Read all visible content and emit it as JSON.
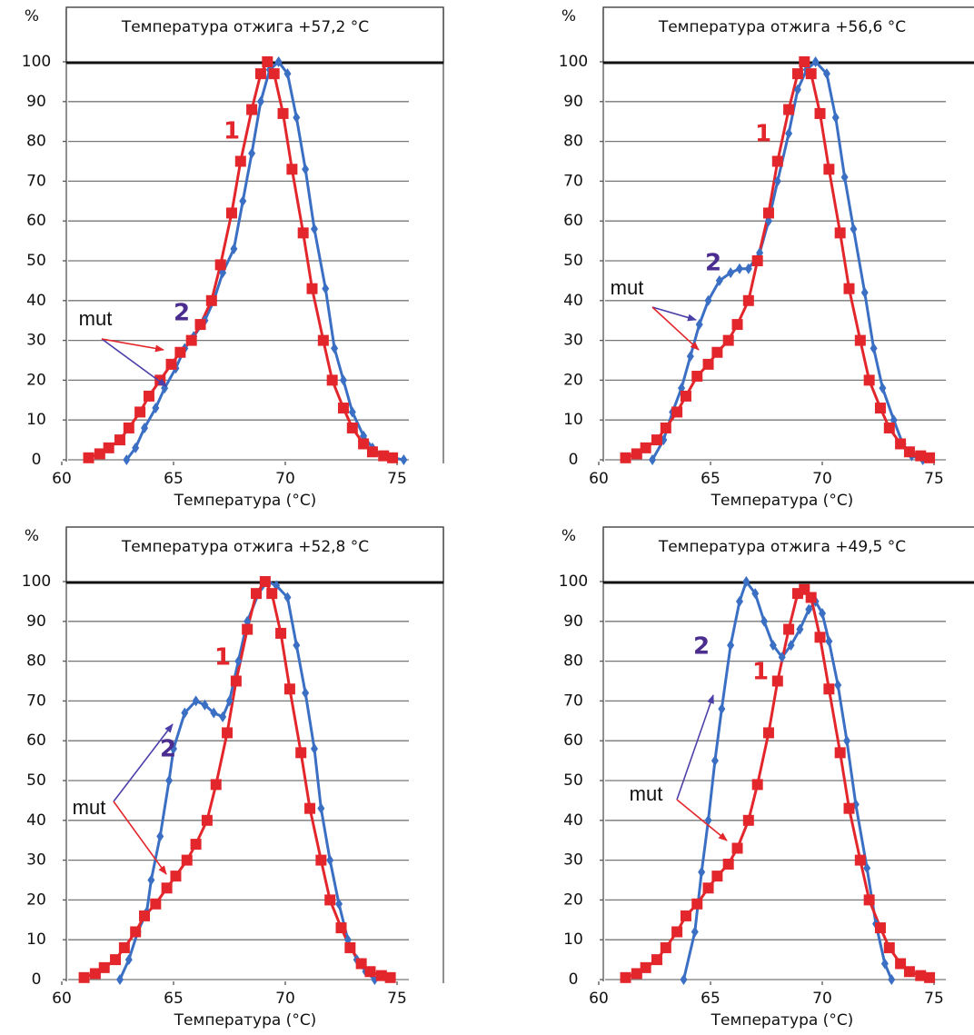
{
  "chart_data": [
    {
      "type": "line",
      "title": "Температура отжига +57,2 °C",
      "xlabel": "Температура (°C)",
      "ylabel": "%",
      "xlim": [
        60,
        75
      ],
      "ylim": [
        0,
        100
      ],
      "xticks": [
        60,
        65,
        70,
        75
      ],
      "yticks": [
        0,
        10,
        20,
        30,
        40,
        50,
        60,
        70,
        80,
        90,
        100
      ],
      "grid": true,
      "annotations": [
        "mut"
      ],
      "series": [
        {
          "name": "1",
          "color": "#e3262b",
          "marker": "square",
          "x": [
            61.2,
            61.7,
            62.1,
            62.6,
            63.0,
            63.5,
            63.9,
            64.4,
            64.9,
            65.3,
            65.8,
            66.2,
            66.7,
            67.1,
            67.6,
            68.0,
            68.5,
            68.9,
            69.2,
            69.5,
            69.9,
            70.3,
            70.8,
            71.2,
            71.7,
            72.1,
            72.6,
            73.0,
            73.5,
            73.9,
            74.4,
            74.8
          ],
          "values": [
            0.5,
            1.5,
            3,
            5,
            8,
            12,
            16,
            20,
            24,
            27,
            30,
            34,
            40,
            49,
            62,
            75,
            88,
            97,
            100,
            97,
            87,
            73,
            57,
            43,
            30,
            20,
            13,
            8,
            4,
            2,
            1,
            0.5
          ]
        },
        {
          "name": "2",
          "color": "#3a6fc4",
          "marker": "diamond",
          "x": [
            62.9,
            63.3,
            63.7,
            64.2,
            64.6,
            65.1,
            65.5,
            65.9,
            66.4,
            66.8,
            67.2,
            67.7,
            68.1,
            68.5,
            68.9,
            69.3,
            69.7,
            70.1,
            70.5,
            70.9,
            71.3,
            71.8,
            72.2,
            72.6,
            73.0,
            73.5,
            73.9,
            74.3,
            74.8,
            75.3
          ],
          "values": [
            0,
            3,
            8,
            13,
            18,
            23,
            28,
            31,
            35,
            40,
            47,
            53,
            65,
            77,
            90,
            98,
            100,
            97,
            86,
            73,
            58,
            43,
            28,
            20,
            12,
            6,
            3,
            1,
            0.5,
            0
          ]
        }
      ]
    },
    {
      "type": "line",
      "title": "Температура отжига +56,6 °C",
      "xlabel": "Температура (°C)",
      "ylabel": "%",
      "xlim": [
        60,
        75
      ],
      "ylim": [
        0,
        100
      ],
      "xticks": [
        60,
        65,
        70,
        75
      ],
      "yticks": [
        0,
        10,
        20,
        30,
        40,
        50,
        60,
        70,
        80,
        90,
        100
      ],
      "grid": true,
      "annotations": [
        "mut"
      ],
      "series": [
        {
          "name": "1",
          "color": "#e3262b",
          "marker": "square",
          "x": [
            61.2,
            61.7,
            62.1,
            62.6,
            63.0,
            63.5,
            63.9,
            64.4,
            64.9,
            65.3,
            65.8,
            66.2,
            66.7,
            67.1,
            67.6,
            68.0,
            68.5,
            68.9,
            69.2,
            69.5,
            69.9,
            70.3,
            70.8,
            71.2,
            71.7,
            72.1,
            72.6,
            73.0,
            73.5,
            73.9,
            74.4,
            74.8
          ],
          "values": [
            0.5,
            1.5,
            3,
            5,
            8,
            12,
            16,
            21,
            24,
            27,
            30,
            34,
            40,
            50,
            62,
            75,
            88,
            97,
            100,
            97,
            87,
            73,
            57,
            43,
            30,
            20,
            13,
            8,
            4,
            2,
            1,
            0.5
          ]
        },
        {
          "name": "2",
          "color": "#3a6fc4",
          "marker": "diamond",
          "x": [
            62.4,
            62.9,
            63.3,
            63.7,
            64.1,
            64.5,
            64.9,
            65.4,
            65.9,
            66.3,
            66.7,
            67.2,
            67.6,
            68.0,
            68.5,
            68.9,
            69.3,
            69.7,
            70.2,
            70.6,
            71.0,
            71.4,
            71.9,
            72.3,
            72.7,
            73.2,
            73.6,
            74.0,
            74.5
          ],
          "values": [
            0,
            5,
            12,
            18,
            26,
            34,
            40,
            45,
            47,
            48,
            48,
            52,
            60,
            70,
            82,
            93,
            98,
            100,
            97,
            86,
            71,
            58,
            42,
            28,
            18,
            10,
            4,
            1,
            0
          ]
        }
      ]
    },
    {
      "type": "line",
      "title": "Температура отжига +52,8 °C",
      "xlabel": "Температура (°C)",
      "ylabel": "%",
      "xlim": [
        60,
        75
      ],
      "ylim": [
        0,
        100
      ],
      "xticks": [
        60,
        65,
        70,
        75
      ],
      "yticks": [
        0,
        10,
        20,
        30,
        40,
        50,
        60,
        70,
        80,
        90,
        100
      ],
      "grid": true,
      "annotations": [
        "mut"
      ],
      "series": [
        {
          "name": "1",
          "color": "#e3262b",
          "marker": "square",
          "x": [
            61.0,
            61.5,
            61.9,
            62.4,
            62.8,
            63.3,
            63.7,
            64.2,
            64.7,
            65.1,
            65.6,
            66.0,
            66.5,
            66.9,
            67.4,
            67.8,
            68.3,
            68.7,
            69.1,
            69.4,
            69.8,
            70.2,
            70.7,
            71.1,
            71.6,
            72.0,
            72.5,
            72.9,
            73.4,
            73.8,
            74.3,
            74.7
          ],
          "values": [
            0.5,
            1.5,
            3,
            5,
            8,
            12,
            16,
            19,
            23,
            26,
            30,
            34,
            40,
            49,
            62,
            75,
            88,
            97,
            100,
            97,
            87,
            73,
            57,
            43,
            30,
            20,
            13,
            8,
            4,
            2,
            1,
            0.5
          ]
        },
        {
          "name": "2",
          "color": "#3a6fc4",
          "marker": "diamond",
          "x": [
            62.6,
            63.0,
            63.4,
            63.8,
            64.0,
            64.4,
            64.8,
            65.0,
            65.5,
            66.0,
            66.4,
            66.8,
            67.2,
            67.5,
            67.9,
            68.3,
            68.8,
            69.2,
            69.6,
            70.1,
            70.5,
            70.9,
            71.3,
            71.6,
            72.0,
            72.4,
            72.8,
            73.2,
            73.6,
            74.0
          ],
          "values": [
            0,
            5,
            12,
            17,
            25,
            36,
            50,
            58,
            67,
            70,
            69,
            67,
            66,
            70,
            80,
            90,
            97,
            100,
            99,
            96,
            84,
            72,
            58,
            43,
            30,
            19,
            10,
            5,
            2,
            0
          ]
        }
      ]
    },
    {
      "type": "line",
      "title": "Температура отжига +49,5 °C",
      "xlabel": "Температура (°C)",
      "ylabel": "%",
      "xlim": [
        60,
        75
      ],
      "ylim": [
        0,
        100
      ],
      "xticks": [
        60,
        65,
        70,
        75
      ],
      "yticks": [
        0,
        10,
        20,
        30,
        40,
        50,
        60,
        70,
        80,
        90,
        100
      ],
      "grid": true,
      "annotations": [
        "mut"
      ],
      "series": [
        {
          "name": "1",
          "color": "#e3262b",
          "marker": "square",
          "x": [
            61.2,
            61.7,
            62.1,
            62.6,
            63.0,
            63.5,
            63.9,
            64.4,
            64.9,
            65.3,
            65.8,
            66.2,
            66.7,
            67.1,
            67.6,
            68.0,
            68.5,
            68.9,
            69.2,
            69.5,
            69.9,
            70.3,
            70.8,
            71.2,
            71.7,
            72.1,
            72.6,
            73.0,
            73.5,
            73.9,
            74.4,
            74.8
          ],
          "values": [
            0.5,
            1.5,
            3,
            5,
            8,
            12,
            16,
            19,
            23,
            26,
            29,
            33,
            40,
            49,
            62,
            75,
            88,
            97,
            98,
            96,
            86,
            73,
            57,
            43,
            30,
            20,
            13,
            8,
            4,
            2,
            1,
            0.5
          ]
        },
        {
          "name": "2",
          "color": "#3a6fc4",
          "marker": "diamond",
          "x": [
            63.8,
            64.3,
            64.6,
            64.9,
            65.2,
            65.5,
            65.9,
            66.3,
            66.6,
            67.0,
            67.4,
            67.8,
            68.2,
            68.6,
            69.0,
            69.4,
            69.7,
            70.0,
            70.3,
            70.7,
            71.1,
            71.5,
            72.0,
            72.4,
            72.8,
            73.1
          ],
          "values": [
            0,
            12,
            27,
            40,
            55,
            68,
            84,
            95,
            100,
            97,
            90,
            84,
            81,
            84,
            88,
            93,
            95,
            92,
            85,
            74,
            60,
            44,
            28,
            14,
            4,
            0
          ]
        }
      ]
    }
  ]
}
